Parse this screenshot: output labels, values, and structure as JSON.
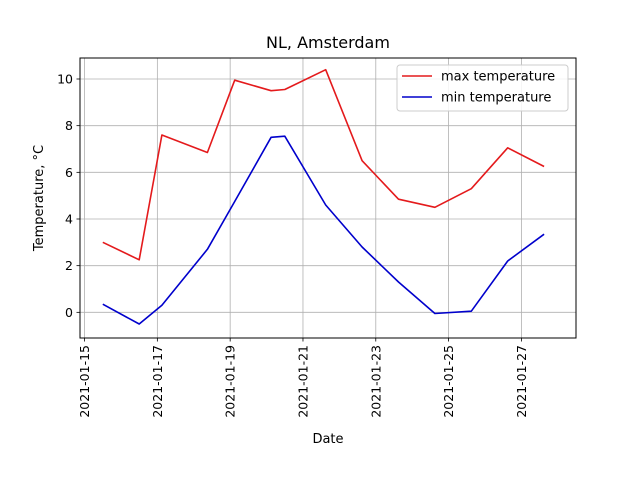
{
  "chart_data": {
    "type": "line",
    "title": "NL, Amsterdam",
    "xlabel": "Date",
    "ylabel": "Temperature, °C",
    "x": [
      "2021-01-15T12:00",
      "2021-01-16T12:00",
      "2021-01-17T03:00",
      "2021-01-18T09:00",
      "2021-01-19T03:00",
      "2021-01-20T03:00",
      "2021-01-20T12:00",
      "2021-01-21T15:00",
      "2021-01-22T15:00",
      "2021-01-23T15:00",
      "2021-01-24T15:00",
      "2021-01-25T15:00",
      "2021-01-26T15:00",
      "2021-01-27T15:00"
    ],
    "xlim": [
      "2021-01-14T21:00",
      "2021-01-28T12:00"
    ],
    "ylim": [
      -1.1,
      10.9
    ],
    "xticks": [
      "2021-01-15",
      "2021-01-17",
      "2021-01-19",
      "2021-01-21",
      "2021-01-23",
      "2021-01-25",
      "2021-01-27"
    ],
    "yticks": [
      0,
      2,
      4,
      6,
      8,
      10
    ],
    "grid": true,
    "legend_position": "top-right",
    "series": [
      {
        "name": "max temperature",
        "color": "#e41a1c",
        "values": [
          3.0,
          2.25,
          7.6,
          6.85,
          9.95,
          9.5,
          9.55,
          10.4,
          6.5,
          4.85,
          4.5,
          5.3,
          7.05,
          6.25
        ]
      },
      {
        "name": "min temperature",
        "color": "#0000cc",
        "values": [
          0.35,
          -0.5,
          0.3,
          2.7,
          4.75,
          7.5,
          7.55,
          4.6,
          2.8,
          1.3,
          -0.05,
          0.05,
          2.2,
          3.35
        ]
      }
    ]
  }
}
